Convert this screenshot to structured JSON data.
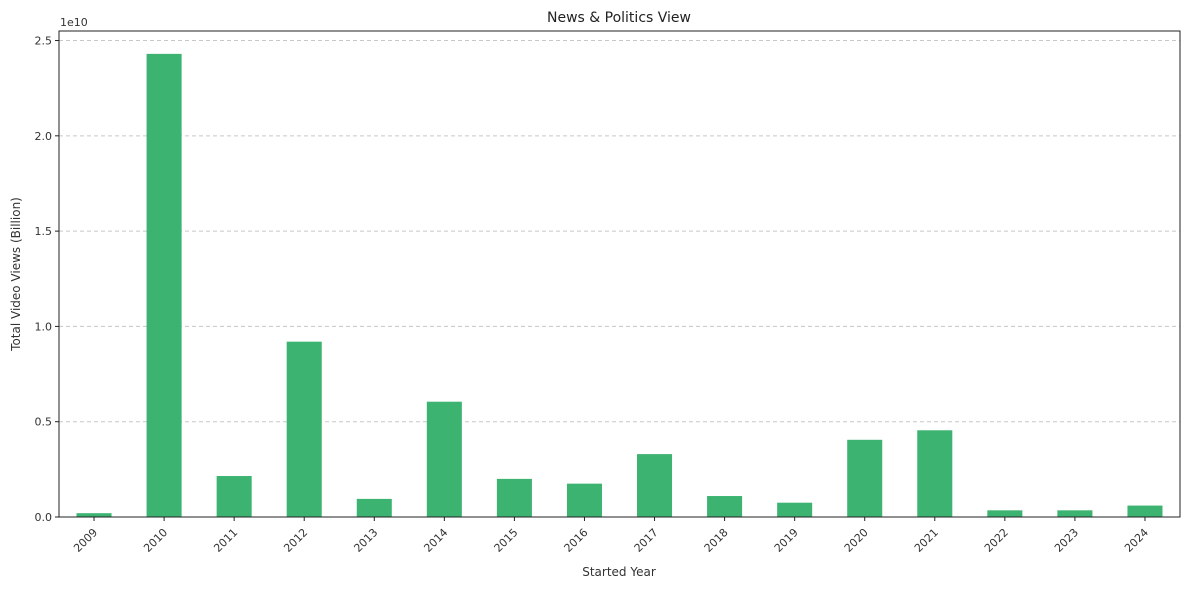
{
  "chart_data": {
    "type": "bar",
    "title": "News & Politics View",
    "xlabel": "Started Year",
    "ylabel": "Total Video Views (Billion)",
    "y_offset_text": "1e10",
    "categories": [
      "2009",
      "2010",
      "2011",
      "2012",
      "2013",
      "2014",
      "2015",
      "2016",
      "2017",
      "2018",
      "2019",
      "2020",
      "2021",
      "2022",
      "2023",
      "2024"
    ],
    "values": [
      0.02,
      2.43,
      0.215,
      0.92,
      0.095,
      0.605,
      0.2,
      0.175,
      0.33,
      0.11,
      0.075,
      0.405,
      0.455,
      0.035,
      0.035,
      0.06
    ],
    "value_scale": "1e10",
    "ylim": [
      0,
      2.55
    ],
    "yticks": [
      0.0,
      0.5,
      1.0,
      1.5,
      2.0,
      2.5
    ],
    "ytick_labels": [
      "0.0",
      "0.5",
      "1.0",
      "1.5",
      "2.0",
      "2.5"
    ],
    "grid": "y, dashed",
    "bar_color": "#3cb371",
    "xtick_rotation": 45
  }
}
